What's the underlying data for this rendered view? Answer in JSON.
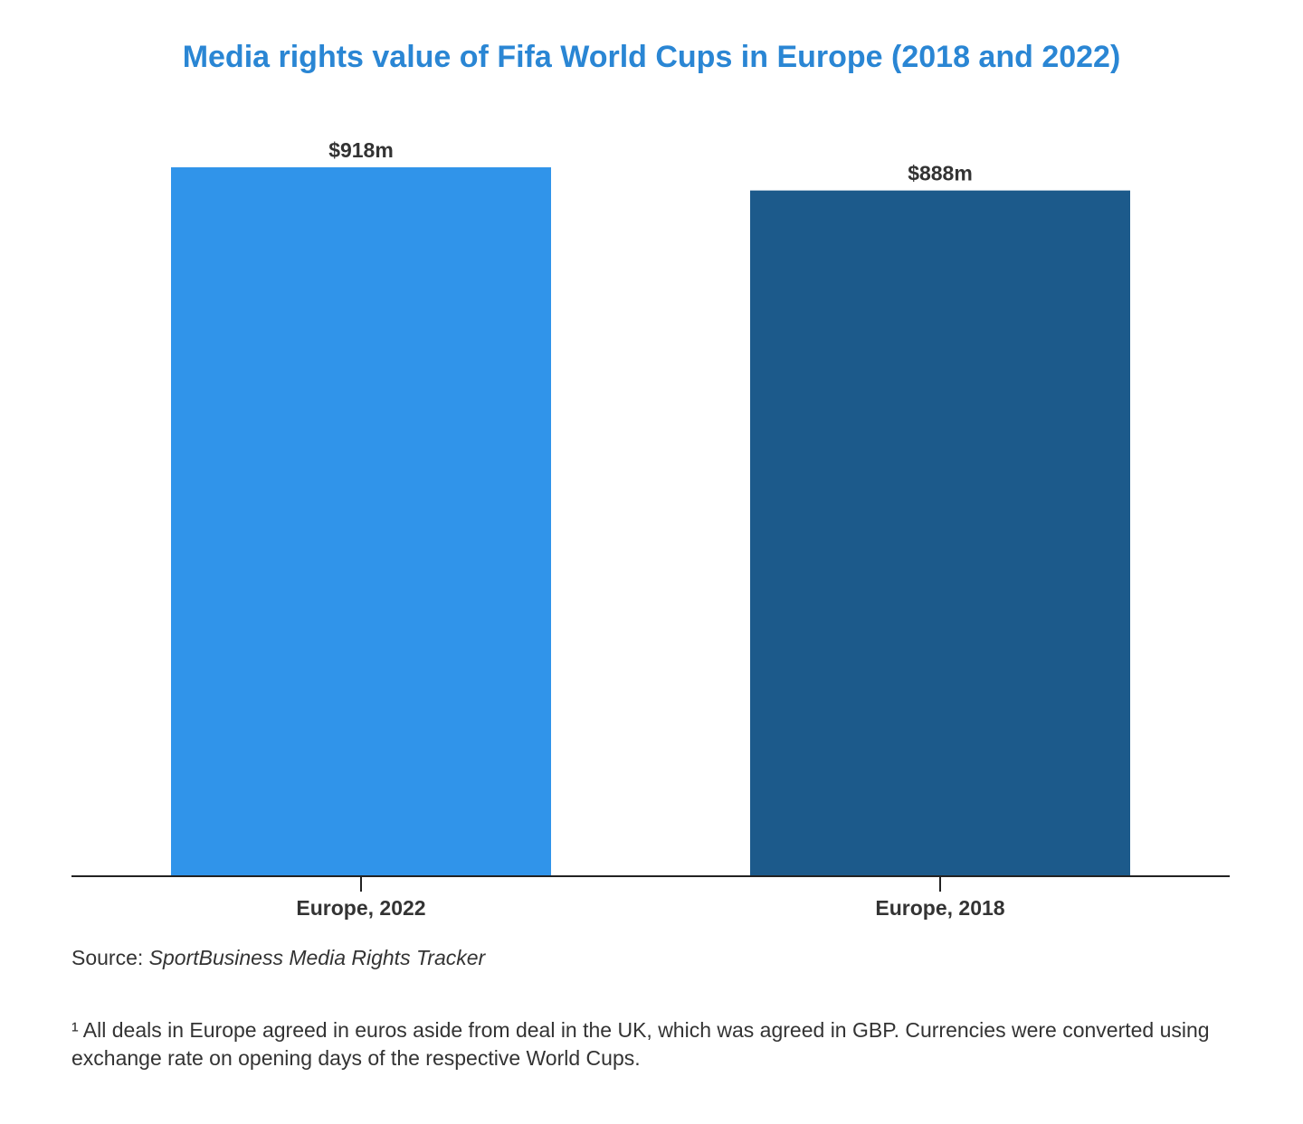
{
  "chart_data": {
    "type": "bar",
    "title": "Media rights value of Fifa World Cups in Europe (2018 and 2022)",
    "categories": [
      "Europe, 2022",
      "Europe, 2018"
    ],
    "values": [
      918,
      888
    ],
    "data_labels": [
      "$918m",
      "$888m"
    ],
    "unit": "$m",
    "colors": [
      "#3094ea",
      "#1c5a8b"
    ],
    "xlabel": "",
    "ylabel": "",
    "ylim": [
      0,
      1000
    ],
    "grid": false,
    "legend": "none"
  },
  "source": {
    "label": "Source: ",
    "name": "SportBusiness Media Rights Tracker"
  },
  "footnote": "¹ All deals in Europe agreed in euros aside from deal in the UK, which was agreed in GBP. Currencies were converted using exchange rate on opening days of the respective World Cups."
}
